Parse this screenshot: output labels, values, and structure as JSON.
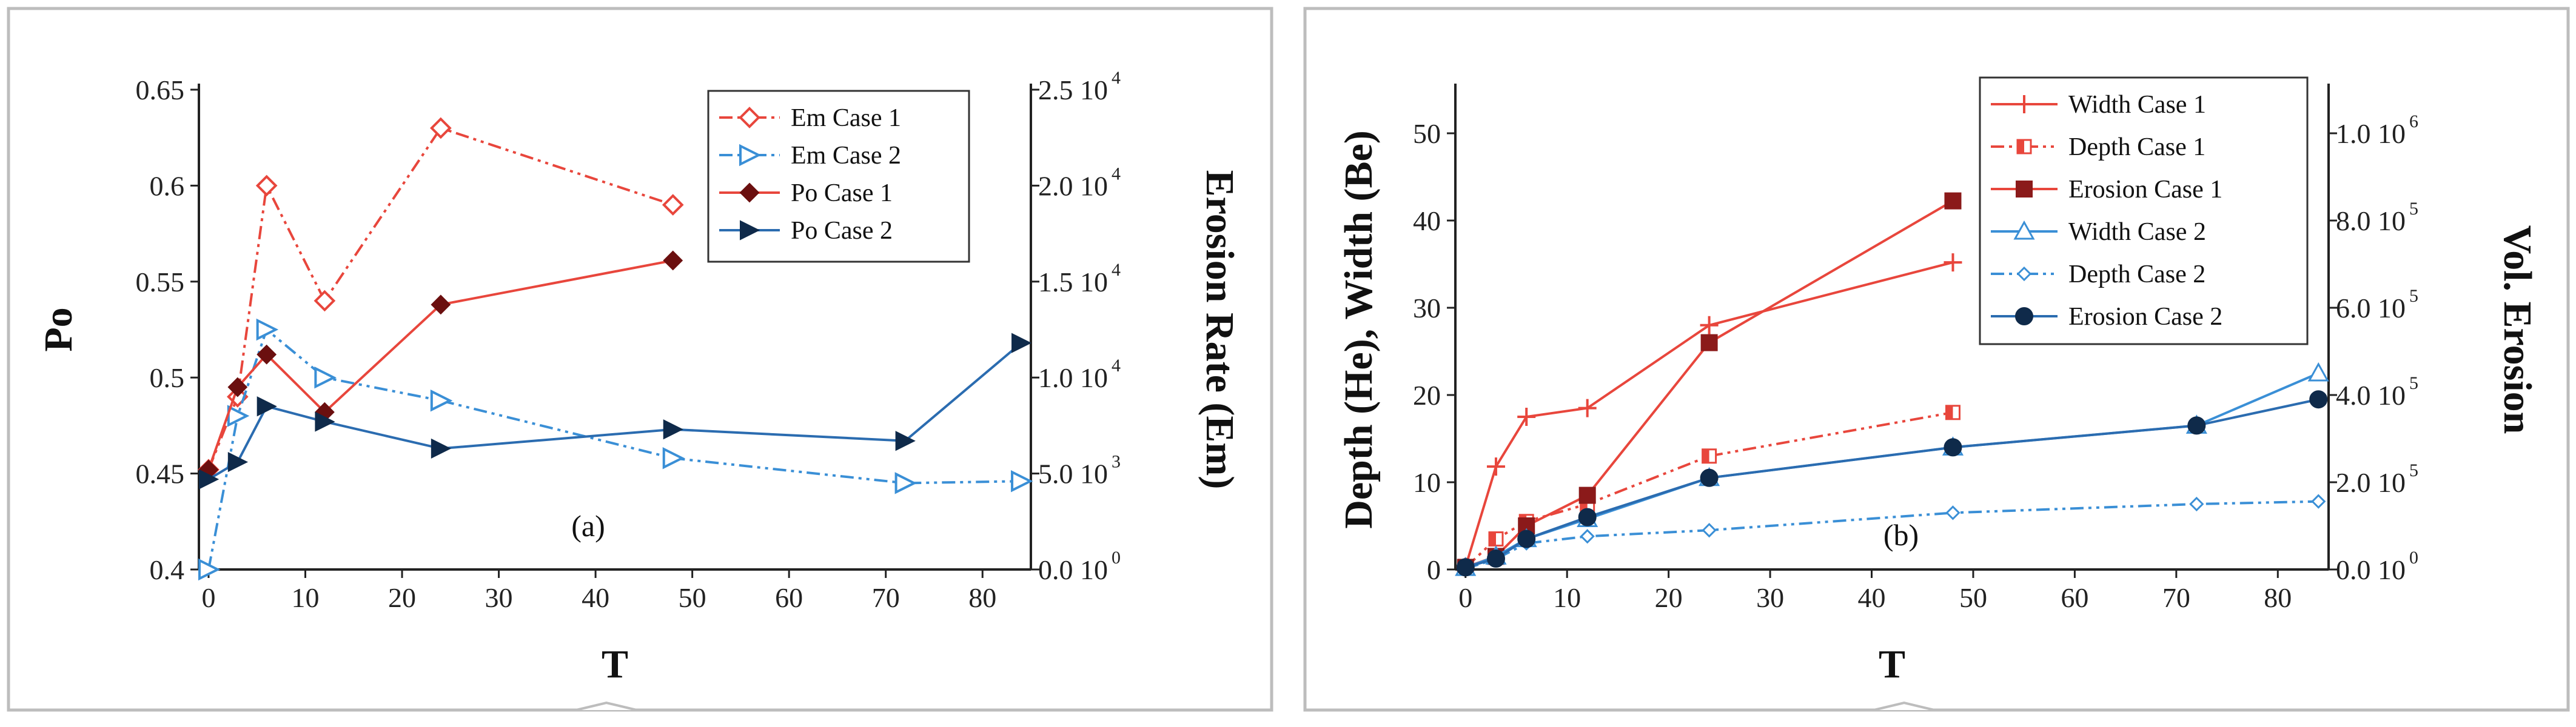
{
  "chart_data": [
    {
      "type": "line",
      "panel_label": "(a)",
      "xlabel": "T",
      "ylabel": "Po",
      "y2label": "Erosion Rate (Em)",
      "xlim": [
        -1,
        85
      ],
      "ylim": [
        0.4,
        0.65
      ],
      "y2lim": [
        0,
        25000
      ],
      "xticks": [
        0,
        10,
        20,
        30,
        40,
        50,
        60,
        70,
        80
      ],
      "xticklabels": [
        "0",
        "10",
        "20",
        "30",
        "40",
        "50",
        "60",
        "70",
        "80"
      ],
      "yticks": [
        0.4,
        0.45,
        0.5,
        0.55,
        0.6,
        0.65
      ],
      "yticklabels": [
        "0.4",
        "0.45",
        "0.5",
        "0.55",
        "0.6",
        "0.65"
      ],
      "y2ticks": [
        0,
        5000,
        10000,
        15000,
        20000,
        25000
      ],
      "y2ticklabels": [
        {
          "m": "0.0 10",
          "e": "0"
        },
        {
          "m": "5.0 10",
          "e": "3"
        },
        {
          "m": "1.0 10",
          "e": "4"
        },
        {
          "m": "1.5 10",
          "e": "4"
        },
        {
          "m": "2.0 10",
          "e": "4"
        },
        {
          "m": "2.5 10",
          "e": "4"
        }
      ],
      "legend_position": "top-right",
      "series": [
        {
          "name": "Em Case 1",
          "axis": "right",
          "color": "#e8463c",
          "dash": "dashdotdot",
          "marker": "diamond-open",
          "x": [
            0,
            3,
            6,
            12,
            24,
            48
          ],
          "y": [
            5200,
            9000,
            20000,
            14000,
            23000,
            19000
          ]
        },
        {
          "name": "Em Case 2",
          "axis": "right",
          "color": "#3a8fd6",
          "dash": "dashdotdot",
          "marker": "triangle-right-open",
          "x": [
            0,
            3,
            6,
            12,
            24,
            48,
            72,
            84
          ],
          "y": [
            0,
            8000,
            12500,
            10000,
            8800,
            5800,
            4500,
            4600
          ]
        },
        {
          "name": "Po Case 1",
          "axis": "left",
          "color": "#e8463c",
          "dash": "solid",
          "marker": "diamond-filled",
          "x": [
            0,
            3,
            6,
            12,
            24,
            48
          ],
          "y": [
            0.452,
            0.495,
            0.512,
            0.482,
            0.538,
            0.561
          ]
        },
        {
          "name": "Po Case 2",
          "axis": "left",
          "color": "#2b6cb0",
          "dash": "solid",
          "marker": "triangle-right-filled",
          "x": [
            0,
            3,
            6,
            12,
            24,
            48,
            72,
            84
          ],
          "y": [
            0.447,
            0.456,
            0.485,
            0.477,
            0.463,
            0.473,
            0.467,
            0.518
          ]
        }
      ]
    },
    {
      "type": "line",
      "panel_label": "(b)",
      "xlabel": "T",
      "ylabel": "Depth (He), Width (Be)",
      "y2label": "Vol. Erosion",
      "xlim": [
        -1,
        85
      ],
      "ylim": [
        0,
        55
      ],
      "y2lim": [
        0,
        1100000
      ],
      "xticks": [
        0,
        10,
        20,
        30,
        40,
        50,
        60,
        70,
        80
      ],
      "xticklabels": [
        "0",
        "10",
        "20",
        "30",
        "40",
        "50",
        "60",
        "70",
        "80"
      ],
      "yticks": [
        0,
        10,
        20,
        30,
        40,
        50
      ],
      "yticklabels": [
        "0",
        "10",
        "20",
        "30",
        "40",
        "50"
      ],
      "y2ticks": [
        0,
        200000,
        400000,
        600000,
        800000,
        1000000
      ],
      "y2ticklabels": [
        {
          "m": "0.0 10",
          "e": "0"
        },
        {
          "m": "2.0 10",
          "e": "5"
        },
        {
          "m": "4.0 10",
          "e": "5"
        },
        {
          "m": "6.0 10",
          "e": "5"
        },
        {
          "m": "8.0 10",
          "e": "5"
        },
        {
          "m": "1.0 10",
          "e": "6"
        }
      ],
      "legend_position": "top-right",
      "series": [
        {
          "name": "Width Case 1",
          "axis": "left",
          "color": "#e8463c",
          "dash": "solid",
          "marker": "plus",
          "x": [
            0,
            3,
            6,
            12,
            24,
            48
          ],
          "y": [
            0.3,
            11.8,
            17.5,
            18.5,
            28,
            35.2
          ]
        },
        {
          "name": "Depth Case 1",
          "axis": "left",
          "color": "#e8463c",
          "dash": "dashdotdot",
          "marker": "square-half",
          "x": [
            0,
            3,
            6,
            12,
            24,
            48
          ],
          "y": [
            0.2,
            3.5,
            5.5,
            7.5,
            13,
            18
          ]
        },
        {
          "name": "Erosion Case 1",
          "axis": "right",
          "color": "#8b1a1a",
          "line_color": "#e8463c",
          "dash": "solid",
          "marker": "square-filled",
          "x": [
            0,
            3,
            6,
            12,
            24,
            48
          ],
          "y": [
            5000,
            30000,
            100000,
            170000,
            520000,
            845000
          ]
        },
        {
          "name": "Width Case 2",
          "axis": "left",
          "color": "#3a8fd6",
          "dash": "solid",
          "marker": "triangle-up-open",
          "x": [
            0,
            3,
            6,
            12,
            24,
            48,
            72,
            84
          ],
          "y": [
            0.2,
            1.5,
            3.5,
            5.8,
            10.5,
            14,
            16.5,
            22.5
          ]
        },
        {
          "name": "Depth Case 2",
          "axis": "left",
          "color": "#3a8fd6",
          "dash": "dashdotdot",
          "marker": "diamond-small",
          "x": [
            0,
            3,
            6,
            12,
            24,
            48,
            72,
            84
          ],
          "y": [
            0.1,
            1.2,
            3,
            3.8,
            4.5,
            6.5,
            7.5,
            7.8
          ]
        },
        {
          "name": "Erosion Case 2",
          "axis": "right",
          "color": "#0f2a4a",
          "line_color": "#2b6cb0",
          "dash": "solid",
          "marker": "circle-filled",
          "x": [
            0,
            3,
            6,
            12,
            24,
            48,
            72,
            84
          ],
          "y": [
            5000,
            25000,
            70000,
            120000,
            210000,
            280000,
            330000,
            390000
          ]
        }
      ]
    }
  ]
}
